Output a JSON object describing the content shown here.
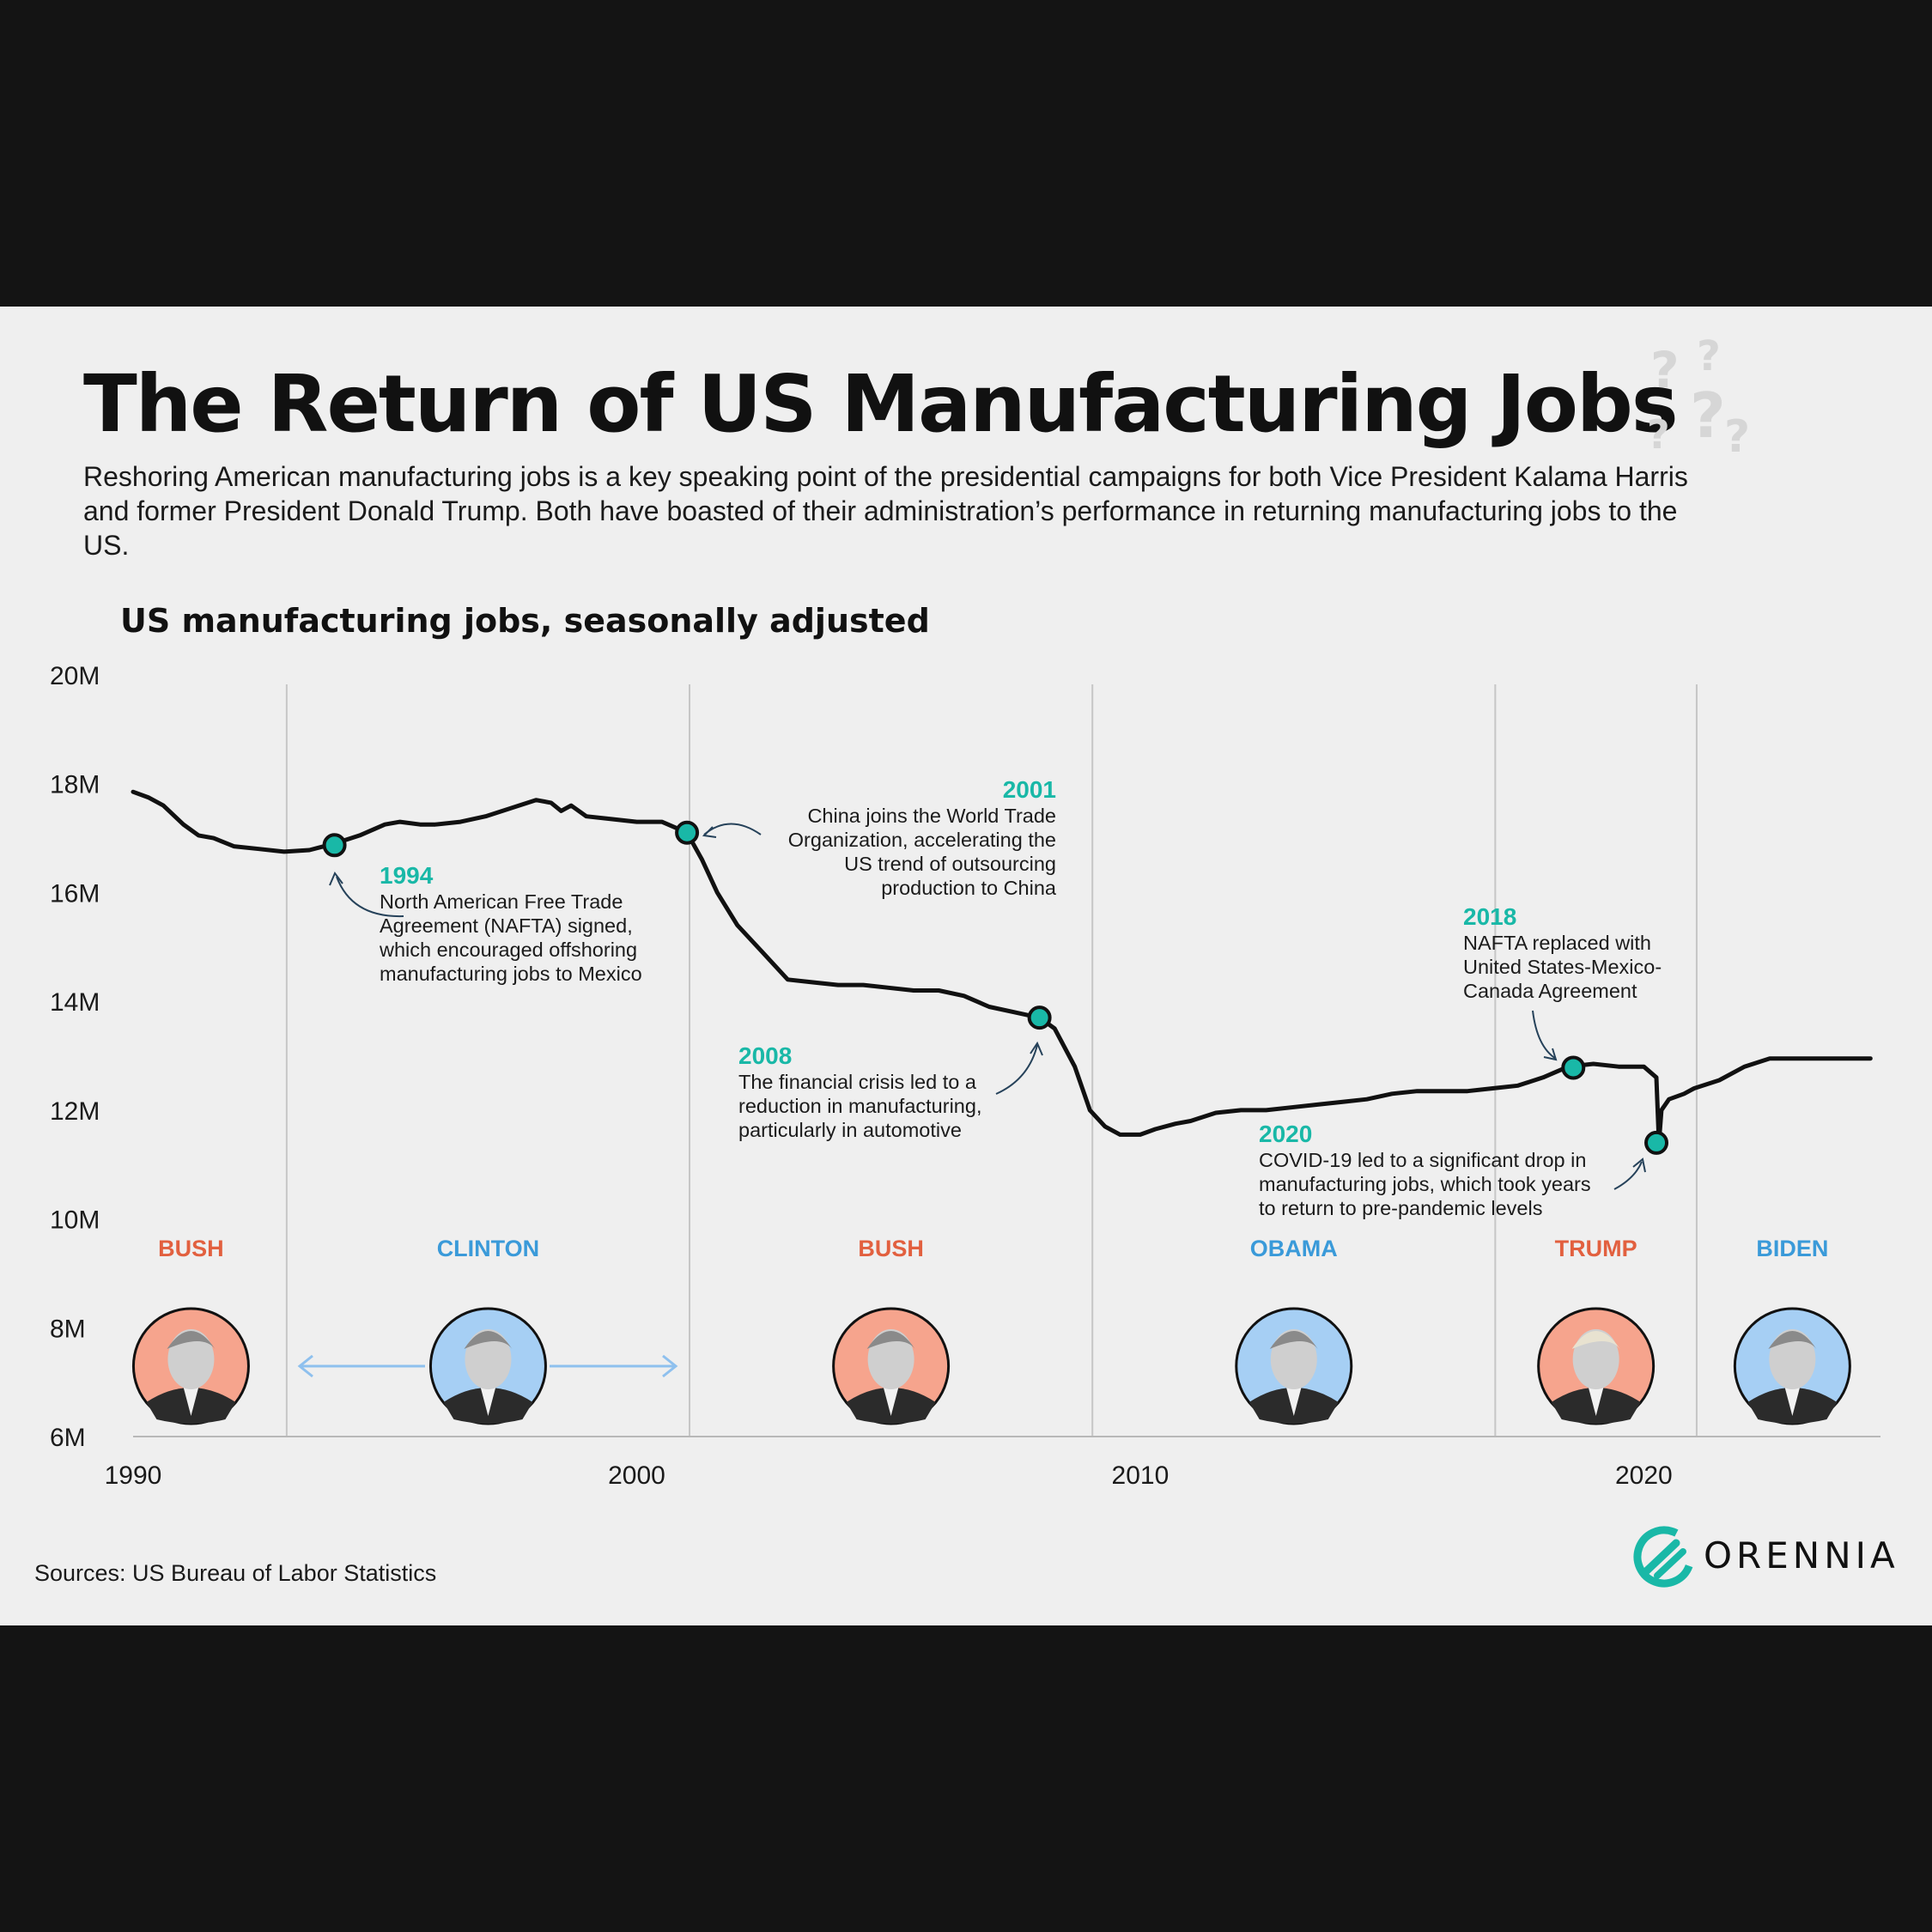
{
  "title": "The Return of US Manufacturing Jobs",
  "subtitle": "Reshoring American manufacturing jobs is a key speaking point of the presidential campaigns for both Vice President Kalama Harris and former President Donald Trump. Both have boasted of their administration’s performance in returning manufacturing jobs to the US.",
  "decoration": {
    "question_marks": [
      "?",
      "?",
      "?",
      "?",
      "?"
    ]
  },
  "source": "Sources: US Bureau of Labor Statistics",
  "logo": {
    "name": "ORENNIA",
    "icon": "orennia-logo-icon"
  },
  "colors": {
    "line": "#111111",
    "accent": "#19b8a7",
    "republican": "#e2603f",
    "democrat": "#3a9ad9",
    "republican_bg": "#f6a48d",
    "democrat_bg": "#a6cff4"
  },
  "chart_data": {
    "type": "line",
    "title": "US manufacturing jobs, seasonally adjusted",
    "xlabel": "",
    "ylabel": "",
    "xlim": [
      1990,
      2024.7
    ],
    "ylim": [
      6,
      20
    ],
    "y_ticks": [
      6,
      8,
      10,
      12,
      14,
      16,
      18,
      20
    ],
    "y_tick_labels": [
      "6M",
      "8M",
      "10M",
      "12M",
      "14M",
      "16M",
      "18M",
      "20M"
    ],
    "x_ticks": [
      1990,
      2000,
      2010,
      2020
    ],
    "x_tick_labels": [
      "1990",
      "2000",
      "2010",
      "2020"
    ],
    "series": [
      {
        "name": "US manufacturing jobs (millions)",
        "x": [
          1990,
          1990.3,
          1990.6,
          1991,
          1991.3,
          1991.6,
          1992,
          1992.5,
          1993,
          1993.5,
          1994,
          1994.5,
          1995,
          1995.3,
          1995.7,
          1996,
          1996.5,
          1997,
          1997.5,
          1998,
          1998.3,
          1998.5,
          1998.7,
          1999,
          1999.5,
          2000,
          2000.5,
          2001,
          2001.3,
          2001.6,
          2002,
          2002.5,
          2003,
          2003.5,
          2004,
          2004.5,
          2005,
          2005.5,
          2006,
          2006.5,
          2007,
          2007.5,
          2008,
          2008.3,
          2008.7,
          2009,
          2009.3,
          2009.6,
          2010,
          2010.3,
          2010.7,
          2011,
          2011.5,
          2012,
          2012.5,
          2013,
          2013.5,
          2014,
          2014.5,
          2015,
          2015.5,
          2016,
          2016.5,
          2017,
          2017.5,
          2018,
          2018.5,
          2019,
          2019.5,
          2020,
          2020.25,
          2020.3,
          2020.35,
          2020.5,
          2020.8,
          2021,
          2021.5,
          2022,
          2022.5,
          2023,
          2023.5,
          2024,
          2024.5
        ],
        "values": [
          17.85,
          17.75,
          17.6,
          17.25,
          17.05,
          17.0,
          16.85,
          16.8,
          16.75,
          16.78,
          16.9,
          17.05,
          17.25,
          17.3,
          17.25,
          17.25,
          17.3,
          17.4,
          17.55,
          17.7,
          17.65,
          17.5,
          17.6,
          17.4,
          17.35,
          17.3,
          17.3,
          17.1,
          16.6,
          16.0,
          15.4,
          14.9,
          14.4,
          14.35,
          14.3,
          14.3,
          14.25,
          14.2,
          14.2,
          14.1,
          13.9,
          13.8,
          13.7,
          13.5,
          12.8,
          12.0,
          11.7,
          11.55,
          11.55,
          11.65,
          11.75,
          11.8,
          11.95,
          12.0,
          12.0,
          12.05,
          12.1,
          12.15,
          12.2,
          12.3,
          12.35,
          12.35,
          12.35,
          12.4,
          12.45,
          12.6,
          12.8,
          12.85,
          12.8,
          12.8,
          12.6,
          11.4,
          12.0,
          12.2,
          12.3,
          12.4,
          12.55,
          12.8,
          12.95,
          12.95,
          12.95,
          12.95,
          12.95
        ]
      }
    ],
    "gridlines_x": [
      1993.05,
      2001.05,
      2009.05,
      2017.05,
      2021.05
    ],
    "highlight_points": [
      {
        "x": 1994,
        "y": 16.87
      },
      {
        "x": 2001,
        "y": 17.1
      },
      {
        "x": 2008,
        "y": 13.7
      },
      {
        "x": 2018.6,
        "y": 12.78
      },
      {
        "x": 2020.25,
        "y": 11.4
      }
    ],
    "annotations": [
      {
        "year": "1994",
        "lines": [
          "North American Free Trade",
          "Agreement (NAFTA) signed,",
          "which encouraged offshoring",
          "manufacturing jobs to Mexico"
        ]
      },
      {
        "year": "2001",
        "lines": [
          "China joins the World Trade",
          "Organization, accelerating the",
          "US trend of outsourcing",
          "production to China"
        ]
      },
      {
        "year": "2008",
        "lines": [
          "The financial crisis led to a",
          "reduction in manufacturing,",
          "particularly in automotive"
        ]
      },
      {
        "year": "2018",
        "lines": [
          "NAFTA replaced with",
          "United States-Mexico-",
          "Canada Agreement"
        ]
      },
      {
        "year": "2020",
        "lines": [
          "COVID-19 led to a significant drop in",
          "manufacturing jobs, which took years",
          "to return to pre-pandemic levels"
        ]
      }
    ],
    "presidents": [
      {
        "name": "BUSH",
        "party": "R",
        "center_year": 1991.15
      },
      {
        "name": "CLINTON",
        "party": "D",
        "center_year": 1997.05
      },
      {
        "name": "BUSH",
        "party": "R",
        "center_year": 2005.05
      },
      {
        "name": "OBAMA",
        "party": "D",
        "center_year": 2013.05
      },
      {
        "name": "TRUMP",
        "party": "R",
        "center_year": 2019.05
      },
      {
        "name": "BIDEN",
        "party": "D",
        "center_year": 2022.95
      }
    ]
  }
}
